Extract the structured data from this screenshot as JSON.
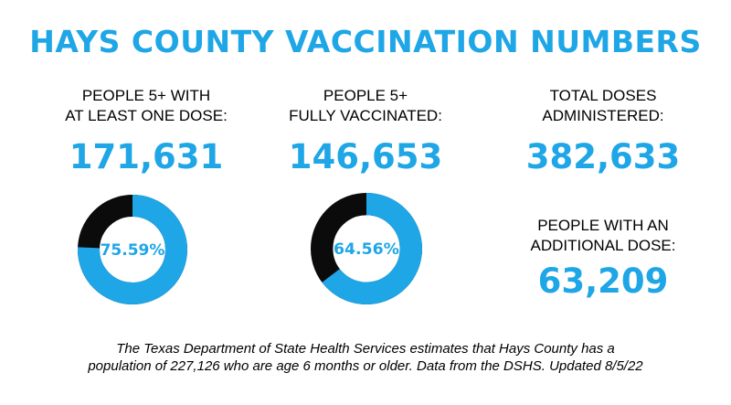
{
  "title": "HAYS COUNTY VACCINATION NUMBERS",
  "colors": {
    "accent": "#1ea6e6",
    "remainder": "#0b0b0b"
  },
  "stats": [
    {
      "label_line1": "PEOPLE  5+ WITH",
      "label_line2": "AT LEAST ONE DOSE:",
      "value": "171,631"
    },
    {
      "label_line1": "PEOPLE 5+",
      "label_line2": "FULLY VACCINATED:",
      "value": "146,653"
    },
    {
      "label_line1": "TOTAL DOSES",
      "label_line2": "ADMINISTERED:",
      "value": "382,633"
    },
    {
      "label_line1": "PEOPLE WITH AN",
      "label_line2": "ADDITIONAL DOSE:",
      "value": "63,209"
    }
  ],
  "chart_data": [
    {
      "type": "pie",
      "values": [
        75.59,
        24.41
      ],
      "center_label": "75.59%"
    },
    {
      "type": "pie",
      "values": [
        64.56,
        35.44
      ],
      "center_label": "64.56%"
    }
  ],
  "footnote": {
    "line1": "The Texas Department of State Health Services estimates that Hays County has a",
    "line2": "population of 227,126 who are age 6 months or older. Data from the DSHS. Updated 8/5/22"
  }
}
